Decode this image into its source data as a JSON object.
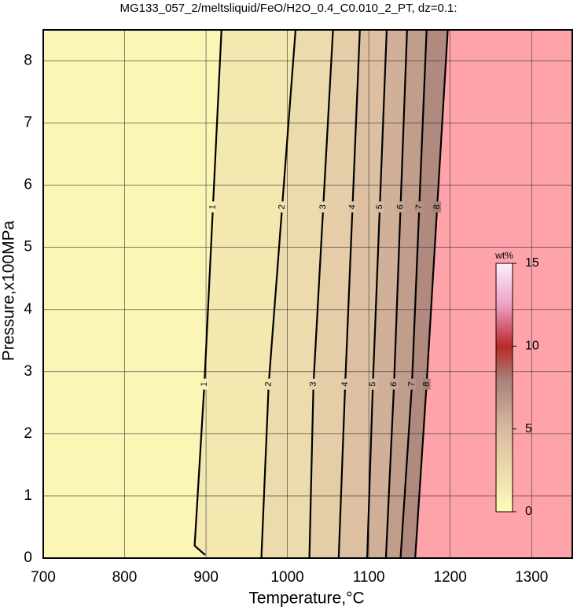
{
  "chart_data": {
    "type": "contour",
    "title": "MG133_057_2/meltsliquid/FeO/H2O_0.4_C0.010_2_PT, dz=0.1:",
    "x_label": "Temperature,°C",
    "y_label": "Pressure,x100MPa",
    "xlim": [
      700,
      1350
    ],
    "ylim": [
      0,
      8.5
    ],
    "xticks": [
      700,
      800,
      900,
      1000,
      1100,
      1200,
      1300
    ],
    "yticks": [
      0,
      1,
      2,
      3,
      4,
      5,
      6,
      7,
      8
    ],
    "grid": true,
    "contours": [
      {
        "level": 1,
        "x": [
          899,
          886,
          898,
          919
        ],
        "y": [
          0.05,
          0.2,
          2.8,
          8.5
        ]
      },
      {
        "level": 2,
        "x": [
          968,
          977,
          1010
        ],
        "y": [
          0,
          2.8,
          8.5
        ]
      },
      {
        "level": 3,
        "x": [
          1027,
          1032,
          1056
        ],
        "y": [
          0,
          2.8,
          8.5
        ]
      },
      {
        "level": 4,
        "x": [
          1063,
          1071,
          1089
        ],
        "y": [
          0,
          2.8,
          8.5
        ]
      },
      {
        "level": 5,
        "x": [
          1098,
          1105,
          1122
        ],
        "y": [
          0,
          2.8,
          8.5
        ]
      },
      {
        "level": 6,
        "x": [
          1121,
          1131,
          1147
        ],
        "y": [
          0,
          2.8,
          8.5
        ]
      },
      {
        "level": 7,
        "x": [
          1139,
          1153,
          1171
        ],
        "y": [
          0,
          2.8,
          8.5
        ]
      },
      {
        "level": 8,
        "x": [
          1157,
          1171,
          1197
        ],
        "y": [
          0,
          2.8,
          8.5
        ]
      }
    ],
    "above_color": "#ffa3aa",
    "colormap": [
      {
        "value": 0,
        "color": "#fffcb8"
      },
      {
        "value": 5,
        "color": "#d9b9a0"
      },
      {
        "value": 8,
        "color": "#a88078"
      },
      {
        "value": 10,
        "color": "#b82828"
      },
      {
        "value": 12.5,
        "color": "#f0a0c8"
      },
      {
        "value": 15,
        "color": "#fbf0fa"
      }
    ],
    "colorbar_label": "wt%",
    "colorbar_lim": [
      0,
      15
    ],
    "colorbar_ticks": [
      0,
      5,
      10,
      15
    ]
  }
}
